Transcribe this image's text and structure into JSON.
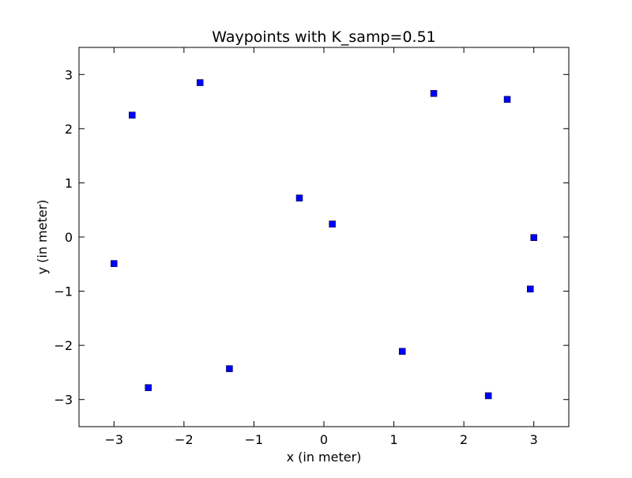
{
  "chart_data": {
    "type": "scatter",
    "title": "Waypoints with K_samp=0.51",
    "xlabel": "x (in meter)",
    "ylabel": "y (in meter)",
    "xlim": [
      -3.5,
      3.5
    ],
    "ylim": [
      -3.5,
      3.5
    ],
    "xticks": [
      -3,
      -2,
      -1,
      0,
      1,
      2,
      3
    ],
    "yticks": [
      -3,
      -2,
      -1,
      0,
      1,
      2,
      3
    ],
    "tick_labels": {
      "x": [
        "−3",
        "−2",
        "−1",
        "0",
        "1",
        "2",
        "3"
      ],
      "y": [
        "−3",
        "−2",
        "−1",
        "0",
        "1",
        "2",
        "3"
      ]
    },
    "grid": false,
    "marker": "square",
    "marker_color": "#0000ff",
    "x": [
      -2.74,
      -1.77,
      -3.0,
      1.57,
      2.62,
      -0.35,
      0.12,
      3.0,
      2.95,
      -1.35,
      -2.51,
      1.12,
      2.35
    ],
    "y": [
      2.25,
      2.85,
      -0.49,
      2.65,
      2.54,
      0.72,
      0.24,
      -0.01,
      -0.96,
      -2.43,
      -2.78,
      -2.11,
      -2.93
    ]
  }
}
